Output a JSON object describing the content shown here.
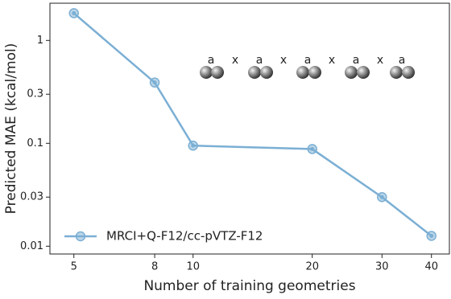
{
  "chart_data": {
    "type": "line",
    "xlabel": "Number of training geometries",
    "ylabel": "Predicted MAE (kcal/mol)",
    "x": [
      5,
      8,
      10,
      20,
      30,
      40
    ],
    "series": [
      {
        "name": "MRCI+Q-F12/cc-pVTZ-F12",
        "color": "#7bafd4",
        "values": [
          1.84,
          0.39,
          0.095,
          0.088,
          0.03,
          0.0126
        ]
      }
    ],
    "xscale": "log",
    "yscale": "log",
    "xlim": [
      4.35,
      44.4
    ],
    "ylim": [
      0.0084,
      2.3
    ],
    "xticks": [
      5,
      8,
      10,
      20,
      30,
      40
    ],
    "yticks": [
      0.01,
      0.03,
      0.1,
      0.3,
      1
    ],
    "legend": "lower left",
    "inset_labels": [
      "a",
      "x",
      "a",
      "x",
      "a",
      "x",
      "a",
      "x",
      "a"
    ]
  }
}
